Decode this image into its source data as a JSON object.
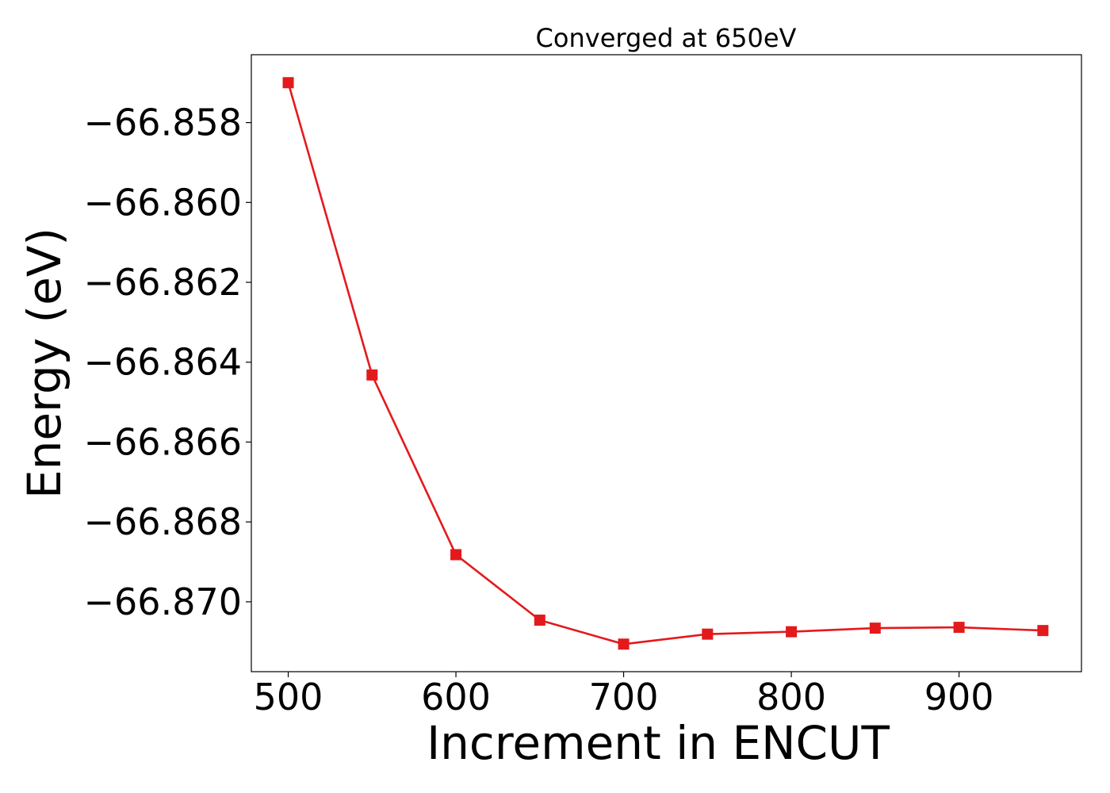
{
  "chart_data": {
    "type": "line",
    "title": "Converged at 650eV",
    "xlabel": "Increment in ENCUT",
    "ylabel": "Energy (eV)",
    "x": [
      500,
      550,
      600,
      650,
      700,
      750,
      800,
      850,
      900,
      950
    ],
    "series": [
      {
        "values": [
          -66.857,
          -66.86432,
          -66.86882,
          -66.87046,
          -66.87106,
          -66.87081,
          -66.87075,
          -66.87066,
          -66.87064,
          -66.87072
        ],
        "color": "#e31a1c",
        "marker": "square"
      }
    ],
    "xlim": [
      478,
      973
    ],
    "ylim": [
      -66.87175,
      -66.8563
    ],
    "x_ticks": [
      500,
      600,
      700,
      800,
      900
    ],
    "x_tick_labels": [
      "500",
      "600",
      "700",
      "800",
      "900"
    ],
    "y_ticks": [
      -66.858,
      -66.86,
      -66.862,
      -66.864,
      -66.866,
      -66.868,
      -66.87
    ],
    "y_tick_labels": [
      "−66.858",
      "−66.860",
      "−66.862",
      "−66.864",
      "−66.866",
      "−66.868",
      "−66.870"
    ],
    "grid": false,
    "legend": "none"
  }
}
